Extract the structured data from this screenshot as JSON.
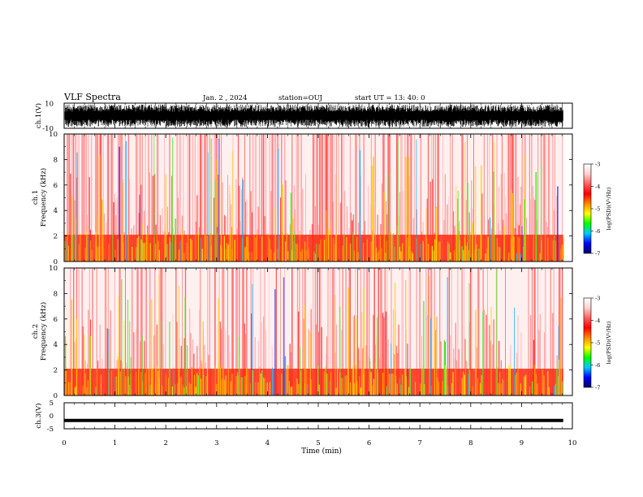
{
  "header": {
    "title": "VLF Spectra",
    "date": "Jan. 2 , 2024",
    "station": "station=OUJ",
    "start": "start UT = 13: 40: 0"
  },
  "colors": {
    "waveform": "#000000",
    "cb_stops": [
      "#ffffff",
      "#ffd0d0",
      "#ff6060",
      "#ff0000",
      "#ff8800",
      "#ffff00",
      "#00ff00",
      "#00c8ff",
      "#0000ff",
      "#000060"
    ]
  },
  "chart_data": [
    {
      "type": "line",
      "name": "ch1-waveform",
      "ylabel": "ch.1(V)",
      "ylim": [
        -10,
        10
      ],
      "yticks": [
        "10",
        "-10"
      ],
      "description_values": {
        "min_amplitude": -9,
        "max_amplitude": 9,
        "trace": "dense saturated oscillation across full 10 min"
      }
    },
    {
      "type": "heatmap",
      "name": "ch1-spectrogram",
      "ylabel": "ch.1 Frequency (kHz)",
      "ylabel_line1": "ch.1",
      "ylabel_line2": "Frequency (kHz)",
      "ylim": [
        0,
        10
      ],
      "yticks": [
        "0",
        "2",
        "4",
        "6",
        "8",
        "10"
      ],
      "band_low_khz": [
        0,
        2
      ],
      "colorbar": {
        "label": "log(PSD)(V²/Hz)",
        "range": [
          -7,
          -3
        ],
        "ticks": [
          "-3",
          "-4",
          "-5",
          "-6",
          "-7"
        ]
      }
    },
    {
      "type": "heatmap",
      "name": "ch2-spectrogram",
      "ylabel": "ch.2 Frequency (kHz)",
      "ylabel_line1": "ch.2",
      "ylabel_line2": "Frequency (kHz)",
      "ylim": [
        0,
        10
      ],
      "yticks": [
        "0",
        "2",
        "4",
        "6",
        "8",
        "10"
      ],
      "band_low_khz": [
        0,
        2
      ],
      "colorbar": {
        "label": "log(PSD)(V²/Hz)",
        "range": [
          -7,
          -3
        ],
        "ticks": [
          "-3",
          "-4",
          "-5",
          "-6",
          "-7"
        ]
      }
    },
    {
      "type": "line",
      "name": "ch3-waveform",
      "ylabel": "ch.3(V)",
      "ylim": [
        -5,
        5
      ],
      "yticks": [
        "5",
        "0",
        "-5"
      ],
      "values_constant": -1.8
    }
  ],
  "xaxis": {
    "label": "Time (min)",
    "ticks": [
      "0",
      "1",
      "2",
      "3",
      "4",
      "5",
      "6",
      "7",
      "8",
      "9",
      "10"
    ],
    "range": [
      0,
      10
    ],
    "data_end_min": 9.82
  }
}
